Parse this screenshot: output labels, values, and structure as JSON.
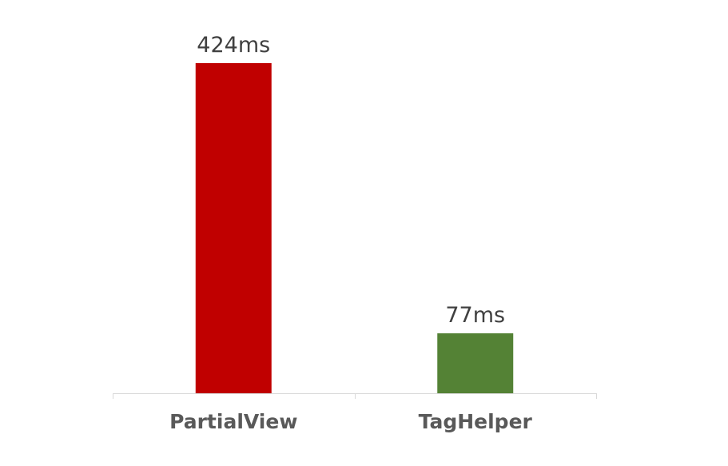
{
  "chart_data": {
    "type": "bar",
    "categories": [
      "PartialView",
      "TagHelper"
    ],
    "values": [
      424,
      77
    ],
    "data_labels": [
      "424ms",
      "77ms"
    ],
    "unit": "ms",
    "colors": [
      "#c00000",
      "#548235"
    ],
    "axis_color": "#d9d9d9",
    "ylim": [
      0,
      424
    ],
    "grid": false,
    "legend": "none"
  }
}
